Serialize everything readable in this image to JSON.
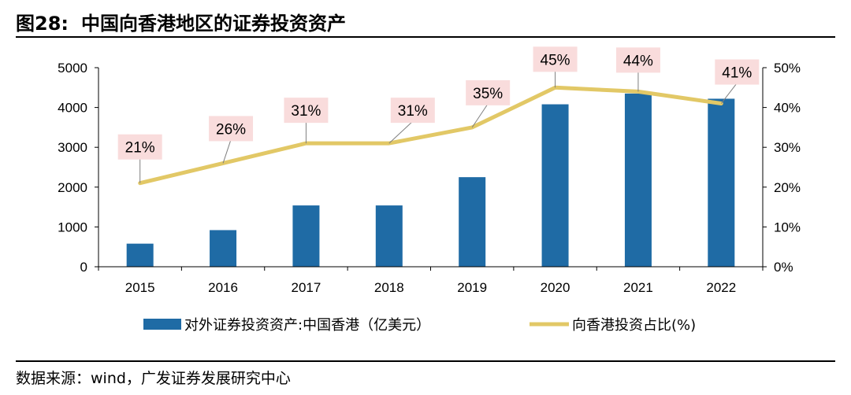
{
  "figure": {
    "number": "图28:",
    "title": "中国向香港地区的证券投资资产"
  },
  "source": "数据来源：wind，广发证券发展研究中心",
  "colors": {
    "bar": "#1F6BA5",
    "line": "#E2C866",
    "label_bg": "#F9DCDC",
    "axis": "#000000"
  },
  "chart_data": {
    "type": "bar",
    "categories": [
      "2015",
      "2016",
      "2017",
      "2018",
      "2019",
      "2020",
      "2021",
      "2022"
    ],
    "series": [
      {
        "name": "对外证券投资资产:中国香港（亿美元）",
        "type": "bar",
        "axis": "left",
        "values": [
          580,
          920,
          1540,
          1540,
          2250,
          4080,
          4350,
          4220
        ]
      },
      {
        "name": "向香港投资占比(%)",
        "type": "line",
        "axis": "right",
        "values": [
          21,
          26,
          31,
          31,
          35,
          45,
          44,
          41
        ],
        "labels": [
          "21%",
          "26%",
          "31%",
          "31%",
          "35%",
          "45%",
          "44%",
          "41%"
        ]
      }
    ],
    "y_left": {
      "range": [
        0,
        5000
      ],
      "ticks": [
        "0",
        "1000",
        "2000",
        "3000",
        "4000",
        "5000"
      ]
    },
    "y_right": {
      "range": [
        0,
        50
      ],
      "ticks": [
        "0%",
        "10%",
        "20%",
        "30%",
        "40%",
        "50%"
      ]
    },
    "legend_position": "bottom",
    "grid": false
  }
}
